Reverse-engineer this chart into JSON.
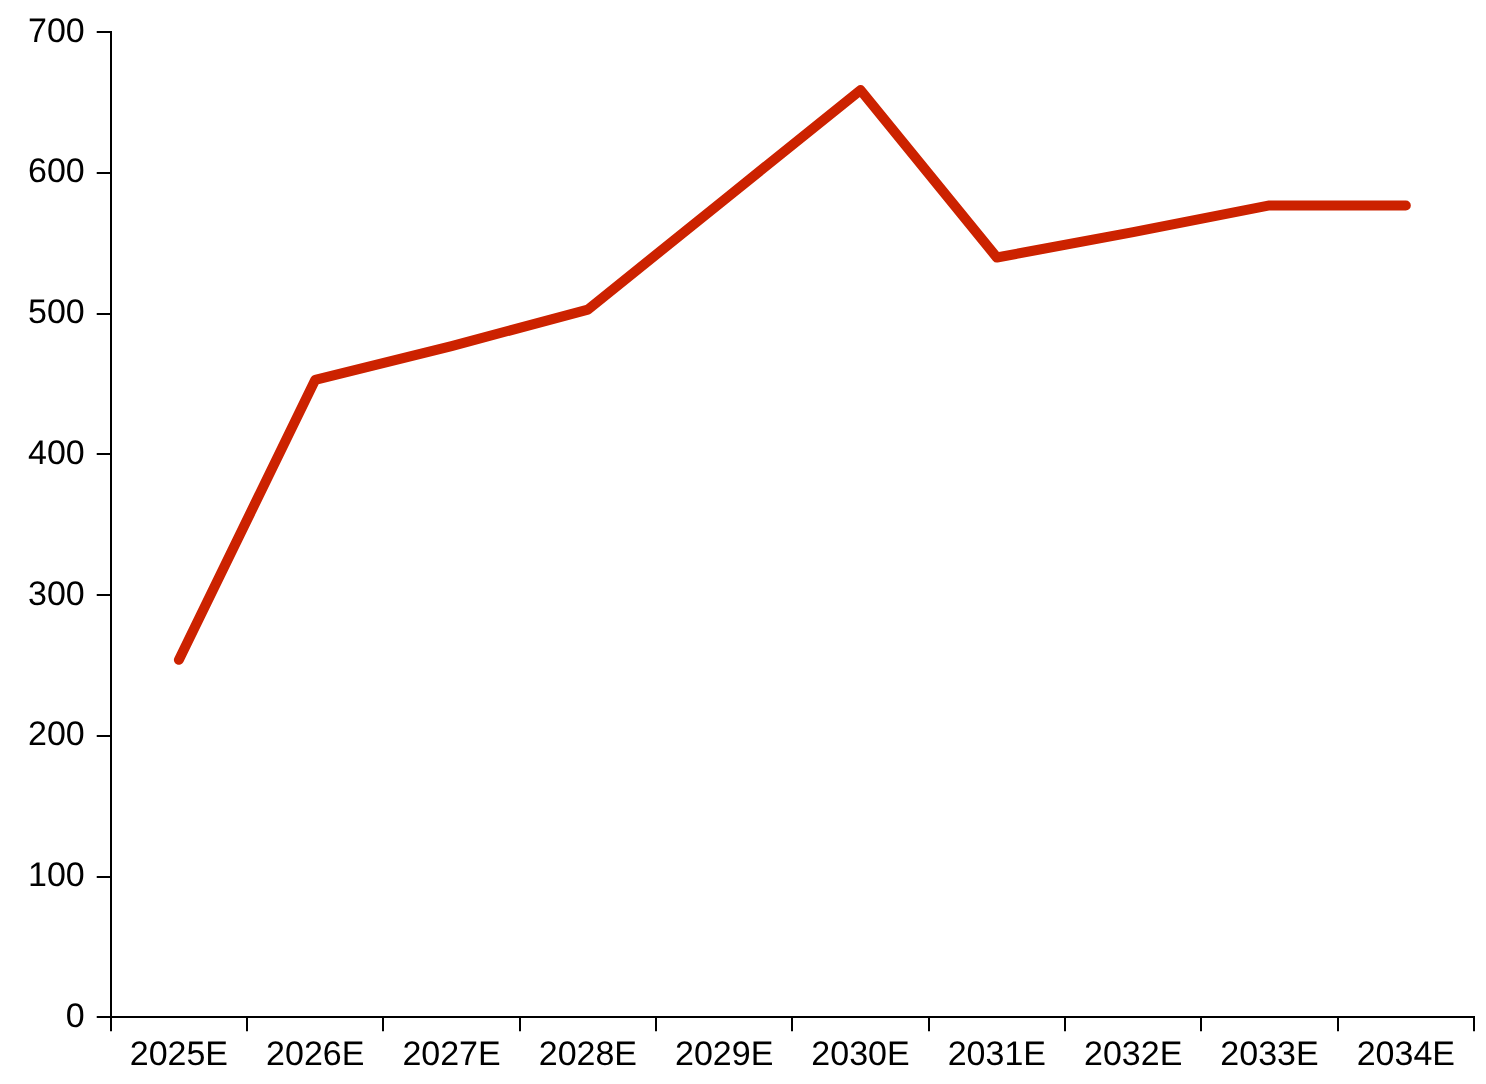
{
  "chart_data": {
    "type": "line",
    "categories": [
      "2025E",
      "2026E",
      "2027E",
      "2028E",
      "2029E",
      "2030E",
      "2031E",
      "2032E",
      "2033E",
      "2034E"
    ],
    "series": [
      {
        "color": "#cc2200",
        "values": [
          254,
          453,
          477,
          503,
          581,
          659,
          540,
          558,
          577,
          577
        ]
      }
    ],
    "ylim": [
      0,
      700
    ],
    "yticks": [
      0,
      100,
      200,
      300,
      400,
      500,
      600,
      700
    ],
    "grid": false,
    "legend": false,
    "marker": "none",
    "line_style": "solid"
  }
}
